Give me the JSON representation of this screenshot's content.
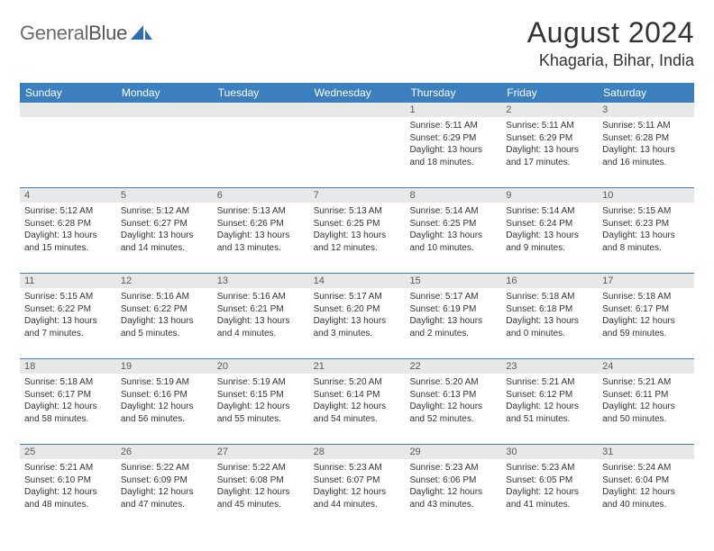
{
  "logo": {
    "part1": "General",
    "part2": "Blue"
  },
  "title": "August 2024",
  "location": "Khagaria, Bihar, India",
  "colors": {
    "header_bg": "#3b7fbf",
    "header_text": "#ffffff",
    "daynum_bg": "#e8e8e8",
    "row_border": "#3b7fbf",
    "body_text": "#333333",
    "logo_gray": "#6b6b6b",
    "logo_blue": "#2d6db3"
  },
  "day_labels": [
    "Sunday",
    "Monday",
    "Tuesday",
    "Wednesday",
    "Thursday",
    "Friday",
    "Saturday"
  ],
  "weeks": [
    {
      "numbers": [
        "",
        "",
        "",
        "",
        "1",
        "2",
        "3"
      ],
      "cells": [
        null,
        null,
        null,
        null,
        {
          "sunrise": "5:11 AM",
          "sunset": "6:29 PM",
          "daylight": "13 hours and 18 minutes."
        },
        {
          "sunrise": "5:11 AM",
          "sunset": "6:29 PM",
          "daylight": "13 hours and 17 minutes."
        },
        {
          "sunrise": "5:11 AM",
          "sunset": "6:28 PM",
          "daylight": "13 hours and 16 minutes."
        }
      ]
    },
    {
      "numbers": [
        "4",
        "5",
        "6",
        "7",
        "8",
        "9",
        "10"
      ],
      "cells": [
        {
          "sunrise": "5:12 AM",
          "sunset": "6:28 PM",
          "daylight": "13 hours and 15 minutes."
        },
        {
          "sunrise": "5:12 AM",
          "sunset": "6:27 PM",
          "daylight": "13 hours and 14 minutes."
        },
        {
          "sunrise": "5:13 AM",
          "sunset": "6:26 PM",
          "daylight": "13 hours and 13 minutes."
        },
        {
          "sunrise": "5:13 AM",
          "sunset": "6:25 PM",
          "daylight": "13 hours and 12 minutes."
        },
        {
          "sunrise": "5:14 AM",
          "sunset": "6:25 PM",
          "daylight": "13 hours and 10 minutes."
        },
        {
          "sunrise": "5:14 AM",
          "sunset": "6:24 PM",
          "daylight": "13 hours and 9 minutes."
        },
        {
          "sunrise": "5:15 AM",
          "sunset": "6:23 PM",
          "daylight": "13 hours and 8 minutes."
        }
      ]
    },
    {
      "numbers": [
        "11",
        "12",
        "13",
        "14",
        "15",
        "16",
        "17"
      ],
      "cells": [
        {
          "sunrise": "5:15 AM",
          "sunset": "6:22 PM",
          "daylight": "13 hours and 7 minutes."
        },
        {
          "sunrise": "5:16 AM",
          "sunset": "6:22 PM",
          "daylight": "13 hours and 5 minutes."
        },
        {
          "sunrise": "5:16 AM",
          "sunset": "6:21 PM",
          "daylight": "13 hours and 4 minutes."
        },
        {
          "sunrise": "5:17 AM",
          "sunset": "6:20 PM",
          "daylight": "13 hours and 3 minutes."
        },
        {
          "sunrise": "5:17 AM",
          "sunset": "6:19 PM",
          "daylight": "13 hours and 2 minutes."
        },
        {
          "sunrise": "5:18 AM",
          "sunset": "6:18 PM",
          "daylight": "13 hours and 0 minutes."
        },
        {
          "sunrise": "5:18 AM",
          "sunset": "6:17 PM",
          "daylight": "12 hours and 59 minutes."
        }
      ]
    },
    {
      "numbers": [
        "18",
        "19",
        "20",
        "21",
        "22",
        "23",
        "24"
      ],
      "cells": [
        {
          "sunrise": "5:18 AM",
          "sunset": "6:17 PM",
          "daylight": "12 hours and 58 minutes."
        },
        {
          "sunrise": "5:19 AM",
          "sunset": "6:16 PM",
          "daylight": "12 hours and 56 minutes."
        },
        {
          "sunrise": "5:19 AM",
          "sunset": "6:15 PM",
          "daylight": "12 hours and 55 minutes."
        },
        {
          "sunrise": "5:20 AM",
          "sunset": "6:14 PM",
          "daylight": "12 hours and 54 minutes."
        },
        {
          "sunrise": "5:20 AM",
          "sunset": "6:13 PM",
          "daylight": "12 hours and 52 minutes."
        },
        {
          "sunrise": "5:21 AM",
          "sunset": "6:12 PM",
          "daylight": "12 hours and 51 minutes."
        },
        {
          "sunrise": "5:21 AM",
          "sunset": "6:11 PM",
          "daylight": "12 hours and 50 minutes."
        }
      ]
    },
    {
      "numbers": [
        "25",
        "26",
        "27",
        "28",
        "29",
        "30",
        "31"
      ],
      "cells": [
        {
          "sunrise": "5:21 AM",
          "sunset": "6:10 PM",
          "daylight": "12 hours and 48 minutes."
        },
        {
          "sunrise": "5:22 AM",
          "sunset": "6:09 PM",
          "daylight": "12 hours and 47 minutes."
        },
        {
          "sunrise": "5:22 AM",
          "sunset": "6:08 PM",
          "daylight": "12 hours and 45 minutes."
        },
        {
          "sunrise": "5:23 AM",
          "sunset": "6:07 PM",
          "daylight": "12 hours and 44 minutes."
        },
        {
          "sunrise": "5:23 AM",
          "sunset": "6:06 PM",
          "daylight": "12 hours and 43 minutes."
        },
        {
          "sunrise": "5:23 AM",
          "sunset": "6:05 PM",
          "daylight": "12 hours and 41 minutes."
        },
        {
          "sunrise": "5:24 AM",
          "sunset": "6:04 PM",
          "daylight": "12 hours and 40 minutes."
        }
      ]
    }
  ],
  "labels": {
    "sunrise": "Sunrise:",
    "sunset": "Sunset:",
    "daylight": "Daylight:"
  }
}
